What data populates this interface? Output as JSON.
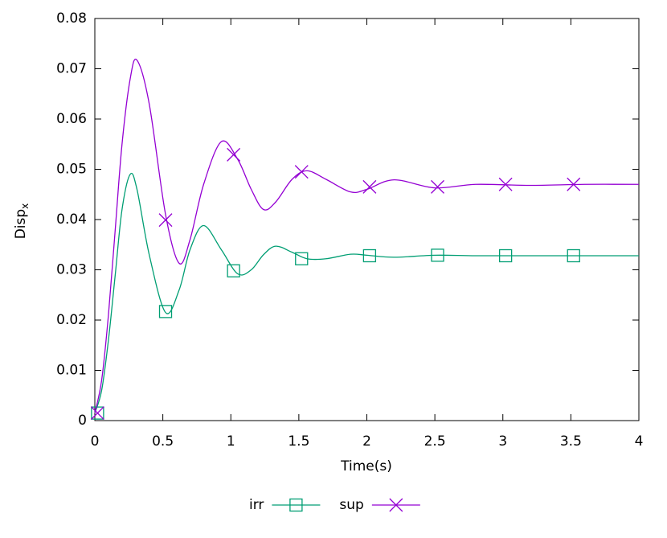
{
  "chart_data": {
    "type": "line",
    "xlabel": "Time(s)",
    "ylabel": {
      "text": "Disp",
      "subscript": "x"
    },
    "xlim": [
      0,
      4
    ],
    "ylim": [
      0,
      0.08
    ],
    "xticks": [
      0,
      0.5,
      1,
      1.5,
      2,
      2.5,
      3,
      3.5,
      4
    ],
    "yticks": [
      0,
      0.01,
      0.02,
      0.03,
      0.04,
      0.05,
      0.06,
      0.07,
      0.08
    ],
    "legend": "bottom",
    "x": [
      0,
      0.05,
      0.1,
      0.15,
      0.2,
      0.26,
      0.31,
      0.4,
      0.52,
      0.62,
      0.7,
      0.8,
      0.93,
      1.05,
      1.15,
      1.24,
      1.33,
      1.45,
      1.56,
      1.7,
      1.88,
      2.0,
      2.2,
      2.5,
      2.8,
      3.2,
      3.6,
      4.0
    ],
    "series": [
      {
        "name": "irr",
        "color": "#009e73",
        "marker": "square",
        "values": [
          0.0015,
          0.006,
          0.016,
          0.029,
          0.042,
          0.049,
          0.046,
          0.033,
          0.0215,
          0.026,
          0.034,
          0.0388,
          0.034,
          0.0292,
          0.03,
          0.033,
          0.0347,
          0.0335,
          0.0322,
          0.0322,
          0.0331,
          0.0329,
          0.0325,
          0.0329,
          0.0328,
          0.0328,
          0.0328,
          0.0328
        ],
        "marker_x": [
          0.02,
          0.52,
          1.02,
          1.52,
          2.02,
          2.52,
          3.02,
          3.52
        ],
        "marker_values": [
          0.0015,
          0.0217,
          0.0298,
          0.0322,
          0.0328,
          0.0329,
          0.0328,
          0.0328
        ]
      },
      {
        "name": "sup",
        "color": "#9400d3",
        "marker": "cross",
        "values": [
          0.0015,
          0.008,
          0.021,
          0.038,
          0.055,
          0.068,
          0.0717,
          0.063,
          0.041,
          0.0313,
          0.036,
          0.047,
          0.0555,
          0.052,
          0.046,
          0.042,
          0.0435,
          0.048,
          0.0497,
          0.048,
          0.0455,
          0.046,
          0.0479,
          0.0463,
          0.047,
          0.0468,
          0.047,
          0.047
        ],
        "marker_x": [
          0.02,
          0.52,
          1.02,
          1.52,
          2.02,
          2.52,
          3.02,
          3.52
        ],
        "marker_values": [
          0.0015,
          0.0399,
          0.0529,
          0.0495,
          0.0465,
          0.0465,
          0.047,
          0.047
        ]
      }
    ]
  }
}
